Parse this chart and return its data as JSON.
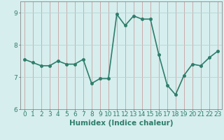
{
  "title": "",
  "xlabel": "Humidex (Indice chaleur)",
  "x_values": [
    0,
    1,
    2,
    3,
    4,
    5,
    6,
    7,
    8,
    9,
    10,
    11,
    12,
    13,
    14,
    15,
    16,
    17,
    18,
    19,
    20,
    21,
    22,
    23
  ],
  "y_values": [
    7.55,
    7.45,
    7.35,
    7.35,
    7.5,
    7.4,
    7.4,
    7.55,
    6.8,
    6.95,
    6.95,
    8.95,
    8.6,
    8.9,
    8.8,
    8.8,
    7.7,
    6.75,
    6.45,
    7.05,
    7.4,
    7.35,
    7.6,
    7.8
  ],
  "line_color": "#2e7d6b",
  "marker_color": "#2e7d6b",
  "bg_color": "#d6eeee",
  "grid_color_v": "#c8a0a0",
  "grid_color_h": "#b8d4d4",
  "axis_color": "#888888",
  "text_color": "#2e7d6b",
  "ylim": [
    6.0,
    9.35
  ],
  "yticks": [
    6,
    7,
    8,
    9
  ],
  "xlim": [
    -0.5,
    23.5
  ],
  "xticks": [
    0,
    1,
    2,
    3,
    4,
    5,
    6,
    7,
    8,
    9,
    10,
    11,
    12,
    13,
    14,
    15,
    16,
    17,
    18,
    19,
    20,
    21,
    22,
    23
  ],
  "xlabel_fontsize": 7.5,
  "tick_fontsize": 6.5,
  "line_width": 1.2,
  "marker_size": 2.5
}
